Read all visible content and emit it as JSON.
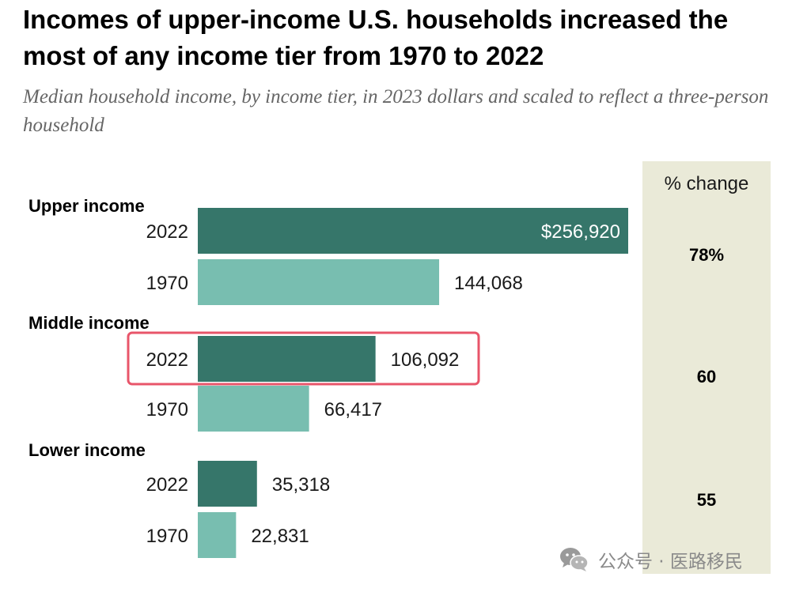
{
  "chart_data": {
    "type": "bar",
    "title": "Incomes of upper-income U.S. households increased the most of any income tier from 1970 to 2022",
    "subtitle": "Median household income, by income tier, in 2023 dollars and scaled to reflect a three-person household",
    "change_header": "% change",
    "groups": [
      {
        "name": "Upper income",
        "change": "78%",
        "bars": [
          {
            "year": "2022",
            "value": 256920,
            "label": "$256,920",
            "label_position": "inside"
          },
          {
            "year": "1970",
            "value": 144068,
            "label": "144,068",
            "label_position": "outside"
          }
        ]
      },
      {
        "name": "Middle income",
        "change": "60",
        "highlighted_bar": "2022",
        "bars": [
          {
            "year": "2022",
            "value": 106092,
            "label": "106,092",
            "label_position": "outside"
          },
          {
            "year": "1970",
            "value": 66417,
            "label": "66,417",
            "label_position": "outside"
          }
        ]
      },
      {
        "name": "Lower income",
        "change": "55",
        "bars": [
          {
            "year": "2022",
            "value": 35318,
            "label": "35,318",
            "label_position": "outside"
          },
          {
            "year": "1970",
            "value": 22831,
            "label": "22,831",
            "label_position": "outside"
          }
        ]
      }
    ],
    "colors": {
      "year_2022": "#36766a",
      "year_1970": "#78beb0",
      "change_column_bg": "#eaead8",
      "highlight_border": "#e8556a"
    },
    "xlim": [
      0,
      256920
    ]
  },
  "watermark": {
    "icon": "wechat-icon",
    "text": "公众号 · 医路移民"
  }
}
